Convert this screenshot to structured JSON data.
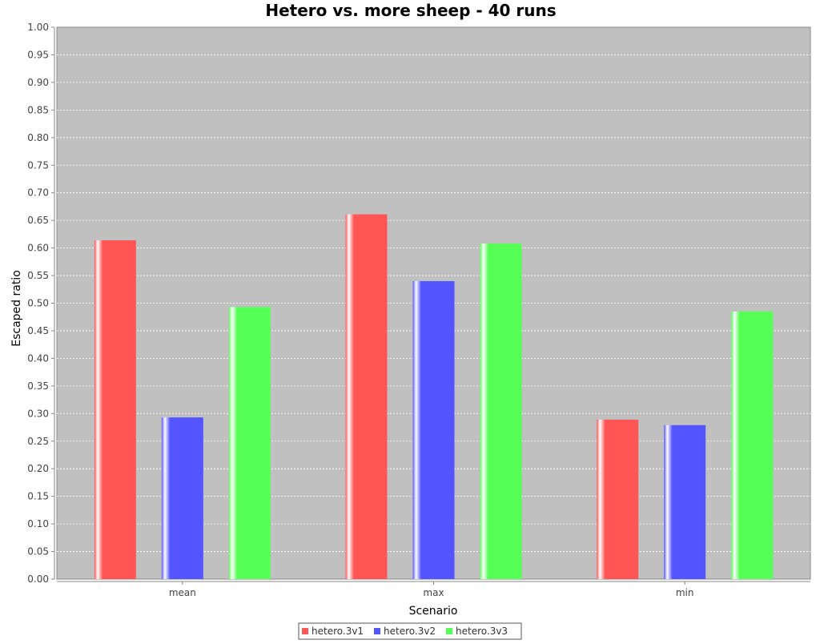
{
  "chart_data": {
    "type": "bar",
    "title": "Hetero vs. more sheep - 40 runs",
    "xlabel": "Scenario",
    "ylabel": "Escaped ratio",
    "categories": [
      "mean",
      "max",
      "min"
    ],
    "series": [
      {
        "name": "hetero.3v1",
        "color": "#ff5555",
        "values": [
          0.614,
          0.661,
          0.289
        ]
      },
      {
        "name": "hetero.3v2",
        "color": "#5555ff",
        "values": [
          0.293,
          0.54,
          0.279
        ]
      },
      {
        "name": "hetero.3v3",
        "color": "#55ff55",
        "values": [
          0.493,
          0.608,
          0.485
        ]
      }
    ],
    "ylim": [
      0,
      1
    ],
    "yticks": [
      "0.00",
      "0.05",
      "0.10",
      "0.15",
      "0.20",
      "0.25",
      "0.30",
      "0.35",
      "0.40",
      "0.45",
      "0.50",
      "0.55",
      "0.60",
      "0.65",
      "0.70",
      "0.75",
      "0.80",
      "0.85",
      "0.90",
      "0.95",
      "1.00"
    ],
    "grid": true,
    "legend_position": "bottom",
    "plot_background": "#c0c0c0"
  }
}
